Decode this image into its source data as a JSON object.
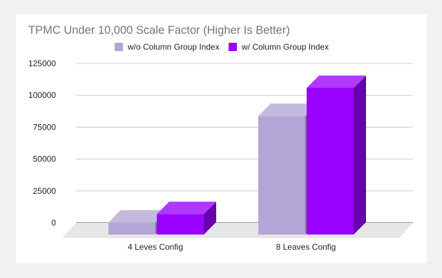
{
  "chart_data": {
    "type": "bar",
    "title": "TPMC Under 10,000 Scale Factor (Higher Is Better)",
    "categories": [
      "4 Leves Config",
      "8 Leaves Config"
    ],
    "series": [
      {
        "name": "w/o Column Group Index",
        "values": [
          9500,
          93000
        ],
        "color": "#b3a6d6"
      },
      {
        "name": "w/ Column Group Index",
        "values": [
          16000,
          115000
        ],
        "color": "#9a00ff"
      }
    ],
    "ylim": [
      0,
      125000
    ],
    "yticks": [
      "0",
      "25000",
      "50000",
      "75000",
      "100000",
      "125000"
    ],
    "grid": true,
    "legend": "top",
    "style": "3d"
  }
}
